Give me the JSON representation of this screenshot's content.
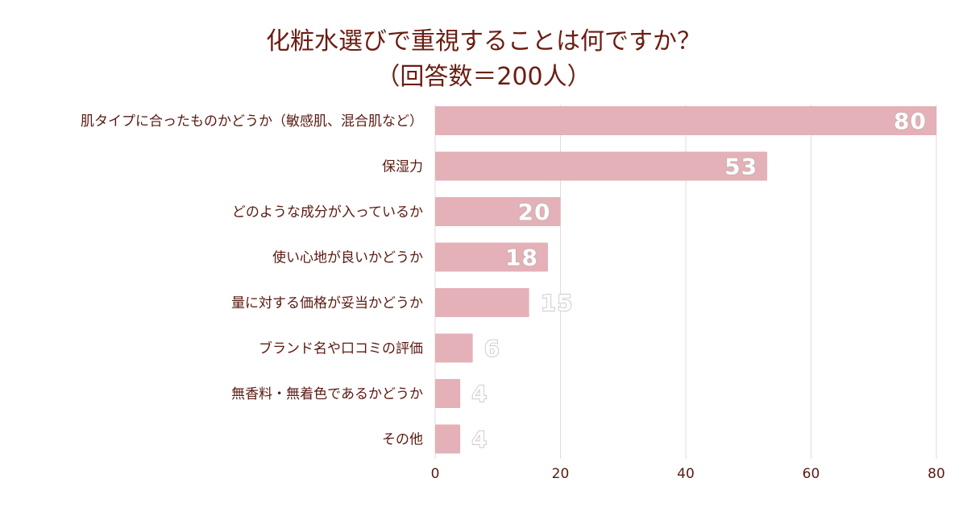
{
  "chart_data": {
    "type": "bar",
    "orientation": "horizontal",
    "title": "化粧水選びで重視することは何ですか？",
    "subtitle": "（回答数＝200人）",
    "categories": [
      "肌タイプに合ったものかどうか（敏感肌、混合肌など）",
      "保湿力",
      "どのような成分が入っているか",
      "使い心地が良いかどうか",
      "量に対する価格が妥当かどうか",
      "ブランド名や口コミの評価",
      "無香料・無着色であるかどうか",
      "その他"
    ],
    "values": [
      80,
      53,
      20,
      18,
      15,
      6,
      4,
      4
    ],
    "xlim": [
      0,
      80
    ],
    "ticks": [
      0,
      20,
      40,
      60,
      80
    ],
    "grid": true,
    "colors": {
      "bar": "#e3b1b7",
      "grid": "#e6d9d9",
      "title": "#6b1d12",
      "label": "#5a1a12"
    }
  }
}
